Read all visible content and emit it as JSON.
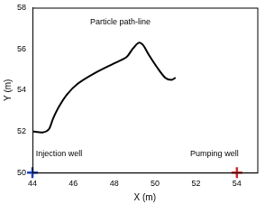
{
  "chart_data": {
    "type": "line",
    "xlabel": "X (m)",
    "ylabel": "Y (m)",
    "xlim": [
      44,
      55
    ],
    "xticks": [
      44,
      46,
      48,
      50,
      52,
      54
    ],
    "ylim": [
      50,
      58
    ],
    "yticks": [
      50,
      52,
      54,
      56,
      58
    ],
    "grid": false,
    "series": [
      {
        "color": "#000000",
        "type": "line",
        "line_style": "solid",
        "marker": "none",
        "x": [
          44,
          44.5,
          44.8,
          45,
          45.3,
          45.7,
          46.2,
          47,
          48,
          48.6,
          48.9,
          49.2,
          49.4,
          49.7,
          50.1,
          50.5,
          50.8,
          51
        ],
        "values": [
          52,
          51.95,
          52.1,
          52.6,
          53.2,
          53.8,
          54.3,
          54.8,
          55.3,
          55.6,
          56.0,
          56.3,
          56.2,
          55.7,
          55.1,
          54.6,
          54.5,
          54.6
        ]
      },
      {
        "color": "#1f3fbf",
        "type": "scatter",
        "marker": "plus",
        "x": [
          44
        ],
        "values": [
          50
        ]
      },
      {
        "color": "#c8282d",
        "type": "scatter",
        "marker": "plus",
        "x": [
          54
        ],
        "values": [
          50
        ]
      }
    ],
    "annotations": [
      {
        "text": "Particle path-line",
        "x": 48.3,
        "y": 57.3
      },
      {
        "text": "Injection well",
        "x": 45.3,
        "y": 50.9
      },
      {
        "text": "Pumping well",
        "x": 52.9,
        "y": 50.9
      }
    ]
  }
}
